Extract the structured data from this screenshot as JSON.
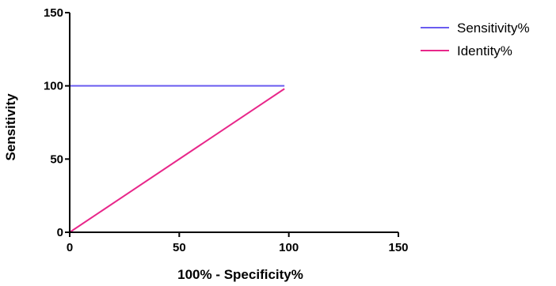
{
  "chart_data": {
    "type": "line",
    "title": "",
    "xlabel": "100% - Specificity%",
    "ylabel": "Sensitivity",
    "xlim": [
      0,
      150
    ],
    "ylim": [
      0,
      150
    ],
    "xticks": [
      "0",
      "50",
      "100",
      "150"
    ],
    "yticks": [
      "0",
      "50",
      "100",
      "150"
    ],
    "grid": false,
    "legend_position": "top-right",
    "series": [
      {
        "name": "Sensitivity%",
        "color": "#6a5cf0",
        "x": [
          0,
          0,
          98
        ],
        "y": [
          0,
          100,
          100
        ]
      },
      {
        "name": "Identity%",
        "color": "#e8278a",
        "x": [
          0,
          98
        ],
        "y": [
          0,
          98
        ]
      }
    ]
  }
}
